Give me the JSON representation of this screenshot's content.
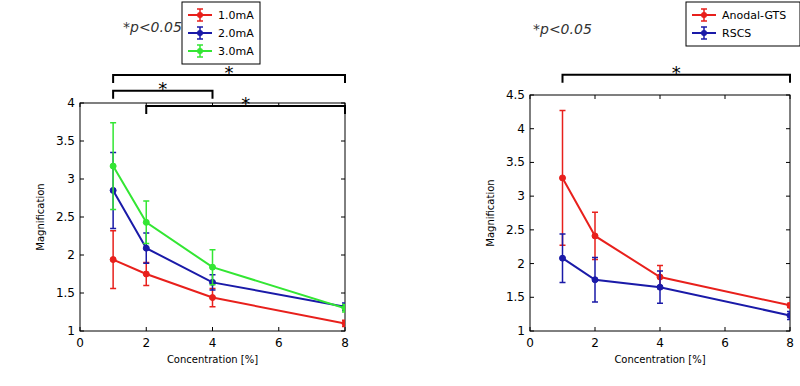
{
  "chart_data": [
    {
      "type": "line",
      "title": "*p<0.05",
      "x_label": "Concentration [%]",
      "y_label": "Magnification",
      "x": [
        1,
        2,
        4,
        8
      ],
      "xlim": [
        0,
        8
      ],
      "xticks": [
        0,
        2,
        4,
        6,
        8
      ],
      "ylim": [
        1,
        4
      ],
      "yticks": [
        1,
        1.5,
        2,
        2.5,
        3,
        3.5,
        4
      ],
      "legend": "upper right",
      "marker": "circle",
      "series": [
        {
          "name": "1.0mA",
          "color": "#e8201c",
          "values": [
            1.94,
            1.75,
            1.44,
            1.1
          ],
          "errors": [
            0.38,
            0.15,
            0.12,
            0.04
          ]
        },
        {
          "name": "2.0mA",
          "color": "#1a1aa8",
          "values": [
            2.85,
            2.09,
            1.64,
            1.32
          ],
          "errors": [
            0.5,
            0.2,
            0.1,
            0.05
          ]
        },
        {
          "name": "3.0mA",
          "color": "#33e633",
          "values": [
            3.17,
            2.43,
            1.84,
            1.3
          ],
          "errors": [
            0.57,
            0.28,
            0.23,
            0.05
          ]
        }
      ],
      "annotations": [
        {
          "x1": 1,
          "x2": 8,
          "y": 4.37,
          "text": "*"
        },
        {
          "x1": 1,
          "x2": 4,
          "y": 4.16,
          "text": "*"
        },
        {
          "x1": 2,
          "x2": 8,
          "y": 3.96,
          "text": "*"
        }
      ]
    },
    {
      "type": "line",
      "title": "*p<0.05",
      "x_label": "Concentration [%]",
      "y_label": "Magnification",
      "x": [
        1,
        2,
        4,
        8
      ],
      "xlim": [
        0,
        8
      ],
      "xticks": [
        0,
        2,
        4,
        6,
        8
      ],
      "ylim": [
        1,
        4.5
      ],
      "yticks": [
        1,
        1.5,
        2,
        2.5,
        3,
        3.5,
        4,
        4.5
      ],
      "legend": "upper right",
      "marker": "circle",
      "series": [
        {
          "name": "Anodal-GTS",
          "color": "#e8201c",
          "values": [
            3.27,
            2.41,
            1.8,
            1.38
          ],
          "errors": [
            1.0,
            0.35,
            0.17,
            0.03
          ]
        },
        {
          "name": "RSCS",
          "color": "#1a1aa8",
          "values": [
            2.08,
            1.76,
            1.65,
            1.23
          ],
          "errors": [
            0.36,
            0.33,
            0.24,
            0.06
          ]
        }
      ],
      "annotations": [
        {
          "x1": 1,
          "x2": 8,
          "y": 4.8,
          "text": "*"
        }
      ]
    }
  ]
}
